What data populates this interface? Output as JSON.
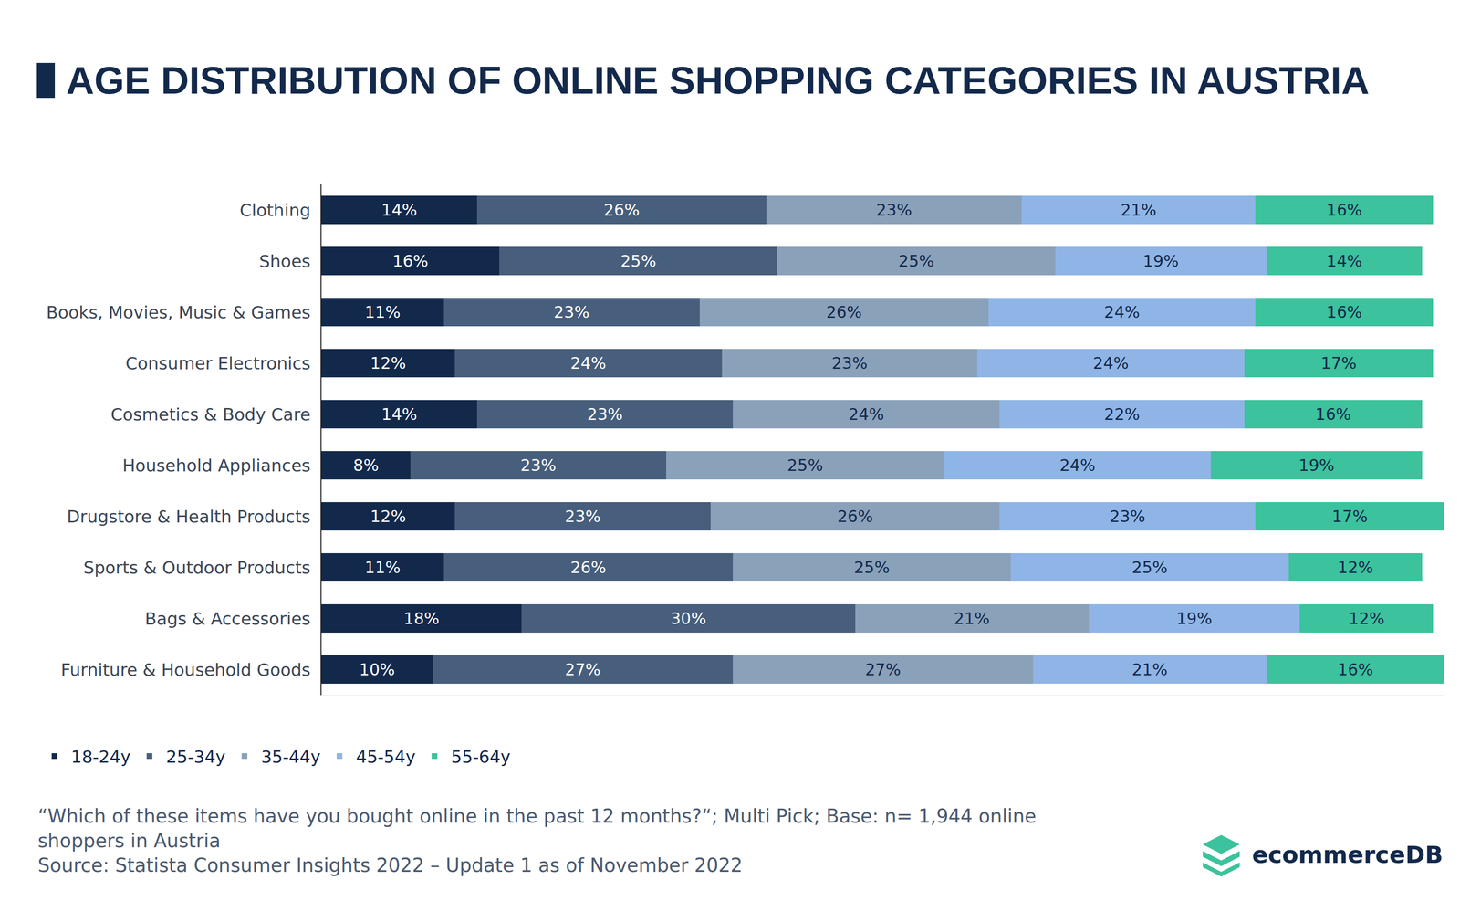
{
  "chart_data": {
    "type": "bar",
    "title": "AGE DISTRIBUTION OF ONLINE SHOPPING CATEGORIES IN AUSTRIA",
    "orientation": "horizontal",
    "stacked": true,
    "data_labels": true,
    "tick_labels": "y",
    "grid": false,
    "legend": "bottom-left",
    "xlim": [
      0,
      101
    ],
    "categories": [
      "Clothing",
      "Shoes",
      "Books, Movies, Music & Games",
      "Consumer Electronics",
      "Cosmetics & Body Care",
      "Household Appliances",
      "Drugstore & Health Products",
      "Sports & Outdoor Products",
      "Bags & Accessories",
      "Furniture & Household Goods"
    ],
    "series": [
      {
        "name": "18-24y",
        "color": "#13294b",
        "values": [
          14,
          16,
          11,
          12,
          14,
          8,
          12,
          11,
          18,
          10
        ],
        "value_labels": [
          "14%",
          "16%",
          "11%",
          "12%",
          "14%",
          "8%",
          "12%",
          "11%",
          "18%",
          "10%"
        ]
      },
      {
        "name": "25-34y",
        "color": "#475e7c",
        "values": [
          26,
          25,
          23,
          24,
          23,
          23,
          23,
          26,
          30,
          27
        ],
        "value_labels": [
          "26%",
          "25%",
          "23%",
          "24%",
          "23%",
          "23%",
          "23%",
          "26%",
          "30%",
          "27%"
        ]
      },
      {
        "name": "35-44y",
        "color": "#8aa1ba",
        "values": [
          23,
          25,
          26,
          23,
          24,
          25,
          26,
          25,
          21,
          27
        ],
        "value_labels": [
          "23%",
          "25%",
          "26%",
          "23%",
          "24%",
          "25%",
          "26%",
          "25%",
          "21%",
          "27%"
        ]
      },
      {
        "name": "45-54y",
        "color": "#8fb5e6",
        "values": [
          21,
          19,
          24,
          24,
          22,
          24,
          23,
          25,
          19,
          21
        ],
        "value_labels": [
          "21%",
          "19%",
          "24%",
          "24%",
          "22%",
          "24%",
          "23%",
          "25%",
          "19%",
          "21%"
        ]
      },
      {
        "name": "55-64y",
        "color": "#3cc29c",
        "values": [
          16,
          14,
          16,
          17,
          16,
          19,
          17,
          12,
          12,
          16
        ],
        "value_labels": [
          "16%",
          "14%",
          "16%",
          "17%",
          "16%",
          "19%",
          "17%",
          "12%",
          "12%",
          "16%"
        ]
      }
    ],
    "annotations": [
      "“Which of these items have you bought online in the past 12 months?“; Multi Pick; Base: n= 1,944 online shoppers in Austria",
      "Source: Statista Consumer Insights 2022 – Update 1 as of November 2022",
      "ecommerceDB"
    ]
  }
}
